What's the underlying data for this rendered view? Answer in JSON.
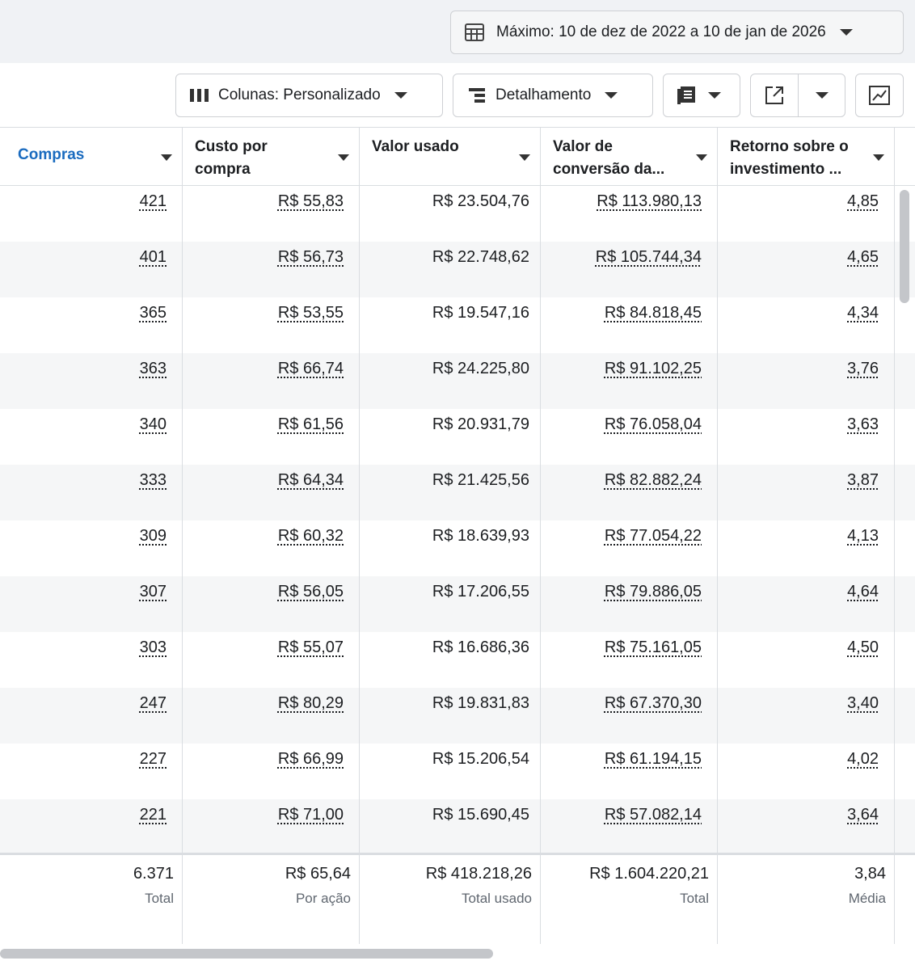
{
  "header": {
    "date_range": "Máximo: 10 de dez de 2022 a 10 de jan de 2026"
  },
  "toolbar": {
    "columns": "Colunas: Personalizado",
    "breakdown": "Detalhamento"
  },
  "table": {
    "columns": [
      "Compras",
      "Custo por compra",
      "Valor usado",
      "Valor de conversão da...",
      "Retorno sobre o investimento ..."
    ],
    "rows": [
      [
        "421",
        "R$ 55,83",
        "R$ 23.504,76",
        "R$ 113.980,13",
        "4,85"
      ],
      [
        "401",
        "R$ 56,73",
        "R$ 22.748,62",
        "R$ 105.744,34",
        "4,65"
      ],
      [
        "365",
        "R$ 53,55",
        "R$ 19.547,16",
        "R$ 84.818,45",
        "4,34"
      ],
      [
        "363",
        "R$ 66,74",
        "R$ 24.225,80",
        "R$ 91.102,25",
        "3,76"
      ],
      [
        "340",
        "R$ 61,56",
        "R$ 20.931,79",
        "R$ 76.058,04",
        "3,63"
      ],
      [
        "333",
        "R$ 64,34",
        "R$ 21.425,56",
        "R$ 82.882,24",
        "3,87"
      ],
      [
        "309",
        "R$ 60,32",
        "R$ 18.639,93",
        "R$ 77.054,22",
        "4,13"
      ],
      [
        "307",
        "R$ 56,05",
        "R$ 17.206,55",
        "R$ 79.886,05",
        "4,64"
      ],
      [
        "303",
        "R$ 55,07",
        "R$ 16.686,36",
        "R$ 75.161,05",
        "4,50"
      ],
      [
        "247",
        "R$ 80,29",
        "R$ 19.831,83",
        "R$ 67.370,30",
        "3,40"
      ],
      [
        "227",
        "R$ 66,99",
        "R$ 15.206,54",
        "R$ 61.194,15",
        "4,02"
      ],
      [
        "221",
        "R$ 71,00",
        "R$ 15.690,45",
        "R$ 57.082,14",
        "3,64"
      ]
    ],
    "totals": [
      {
        "value": "6.371",
        "label": "Total"
      },
      {
        "value": "R$ 65,64",
        "label": "Por ação"
      },
      {
        "value": "R$ 418.218,26",
        "label": "Total usado"
      },
      {
        "value": "R$ 1.604.220,21",
        "label": "Total"
      },
      {
        "value": "3,84",
        "label": "Média"
      }
    ]
  }
}
